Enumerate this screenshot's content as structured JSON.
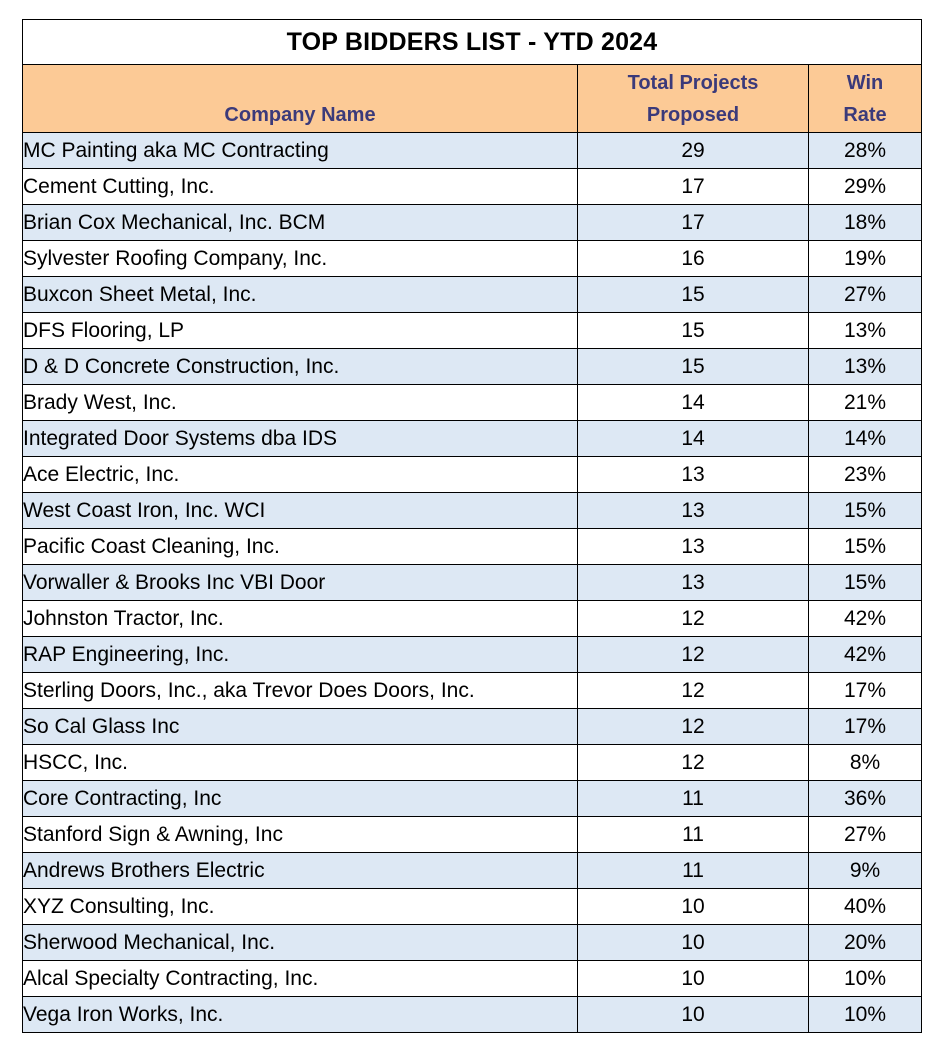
{
  "title": "TOP BIDDERS LIST - YTD 2024",
  "headers": {
    "company": "Company Name",
    "projects_line1": "Total Projects",
    "projects_line2": "Proposed",
    "rate_line1": "Win",
    "rate_line2": "Rate"
  },
  "rows": [
    {
      "company": "MC Painting aka MC Contracting",
      "projects": "29",
      "win_rate": "28%"
    },
    {
      "company": "Cement Cutting, Inc.",
      "projects": "17",
      "win_rate": "29%"
    },
    {
      "company": "Brian Cox Mechanical, Inc. BCM",
      "projects": "17",
      "win_rate": "18%"
    },
    {
      "company": "Sylvester Roofing Company, Inc.",
      "projects": "16",
      "win_rate": "19%"
    },
    {
      "company": "Buxcon Sheet Metal, Inc.",
      "projects": "15",
      "win_rate": "27%"
    },
    {
      "company": "DFS Flooring, LP",
      "projects": "15",
      "win_rate": "13%"
    },
    {
      "company": "D & D Concrete Construction, Inc.",
      "projects": "15",
      "win_rate": "13%"
    },
    {
      "company": "Brady West, Inc.",
      "projects": "14",
      "win_rate": "21%"
    },
    {
      "company": "Integrated Door Systems dba IDS",
      "projects": "14",
      "win_rate": "14%"
    },
    {
      "company": "Ace Electric, Inc.",
      "projects": "13",
      "win_rate": "23%"
    },
    {
      "company": "West Coast Iron, Inc. WCI",
      "projects": "13",
      "win_rate": "15%"
    },
    {
      "company": "Pacific Coast Cleaning, Inc.",
      "projects": "13",
      "win_rate": "15%"
    },
    {
      "company": "Vorwaller & Brooks Inc VBI Door",
      "projects": "13",
      "win_rate": "15%"
    },
    {
      "company": "Johnston Tractor, Inc.",
      "projects": "12",
      "win_rate": "42%"
    },
    {
      "company": "RAP Engineering, Inc.",
      "projects": "12",
      "win_rate": "42%"
    },
    {
      "company": "Sterling Doors, Inc., aka Trevor Does Doors, Inc.",
      "projects": "12",
      "win_rate": "17%"
    },
    {
      "company": "So Cal Glass Inc",
      "projects": "12",
      "win_rate": "17%"
    },
    {
      "company": "HSCC, Inc.",
      "projects": "12",
      "win_rate": "8%"
    },
    {
      "company": "Core Contracting, Inc",
      "projects": "11",
      "win_rate": "36%"
    },
    {
      "company": "Stanford Sign & Awning, Inc",
      "projects": "11",
      "win_rate": "27%"
    },
    {
      "company": "Andrews Brothers Electric",
      "projects": "11",
      "win_rate": "9%"
    },
    {
      "company": "XYZ Consulting, Inc.",
      "projects": "10",
      "win_rate": "40%"
    },
    {
      "company": "Sherwood Mechanical, Inc.",
      "projects": "10",
      "win_rate": "20%"
    },
    {
      "company": "Alcal Specialty Contracting, Inc.",
      "projects": "10",
      "win_rate": "10%"
    },
    {
      "company": "Vega Iron Works, Inc.",
      "projects": "10",
      "win_rate": "10%"
    }
  ],
  "colors": {
    "header_bg": "#fcca96",
    "header_text": "#3b3a7a",
    "band_bg": "#dde8f4"
  }
}
